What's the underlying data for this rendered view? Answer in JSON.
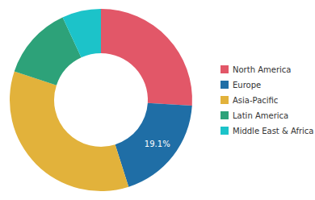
{
  "chart_data": {
    "type": "pie",
    "categories": [
      "North America",
      "Europe",
      "Asia-Pacific",
      "Latin America",
      "Middle East & Africa"
    ],
    "values": [
      26,
      19.1,
      35,
      13,
      6.9
    ],
    "value_labels": [
      null,
      "19.1%",
      null,
      null,
      null
    ],
    "colors": [
      "#e25768",
      "#1f6ea6",
      "#e2b23b",
      "#2da279",
      "#1cc3c9"
    ],
    "data_labels": true,
    "legend": "right"
  }
}
